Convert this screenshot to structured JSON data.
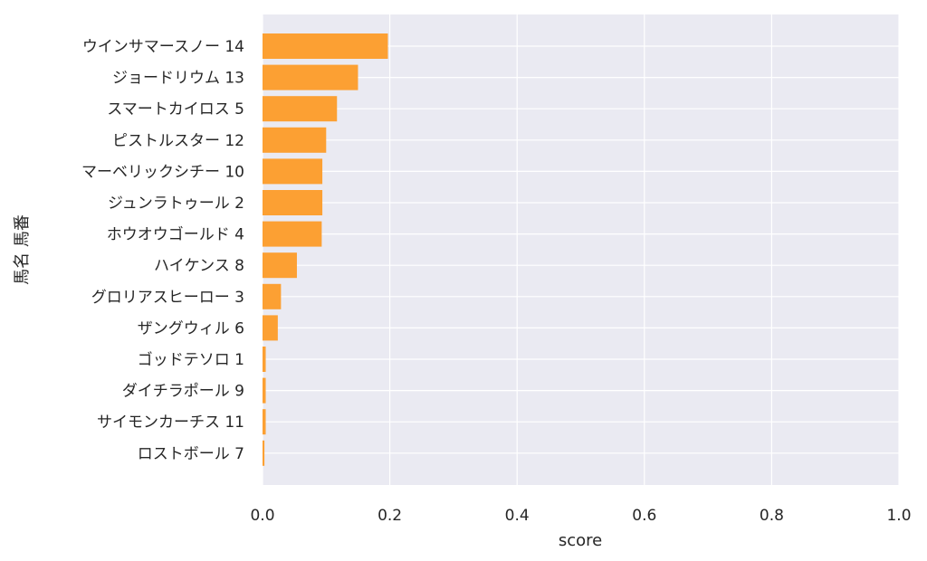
{
  "chart_data": {
    "type": "bar",
    "orientation": "horizontal",
    "title": "",
    "xlabel": "score",
    "ylabel": "馬名 馬番",
    "xlim": [
      0.0,
      1.0
    ],
    "x_ticks": [
      "0.0",
      "0.2",
      "0.4",
      "0.6",
      "0.8",
      "1.0"
    ],
    "grid": true,
    "bar_color": "#fca033",
    "background_color": "#eaeaf2",
    "categories": [
      "ウインサマースノー 14",
      "ジョードリウム 13",
      "スマートカイロス 5",
      "ピストルスター 12",
      "マーベリックシチー 10",
      "ジュンラトゥール 2",
      "ホウオウゴールド 4",
      "ハイケンス 8",
      "グロリアスヒーロー 3",
      "ザングウィル 6",
      "ゴッドテソロ 1",
      "ダイチラポール 9",
      "サイモンカーチス 11",
      "ロストボール 7"
    ],
    "values": [
      0.197,
      0.15,
      0.117,
      0.1,
      0.094,
      0.094,
      0.093,
      0.054,
      0.029,
      0.024,
      0.005,
      0.005,
      0.005,
      0.003
    ]
  }
}
